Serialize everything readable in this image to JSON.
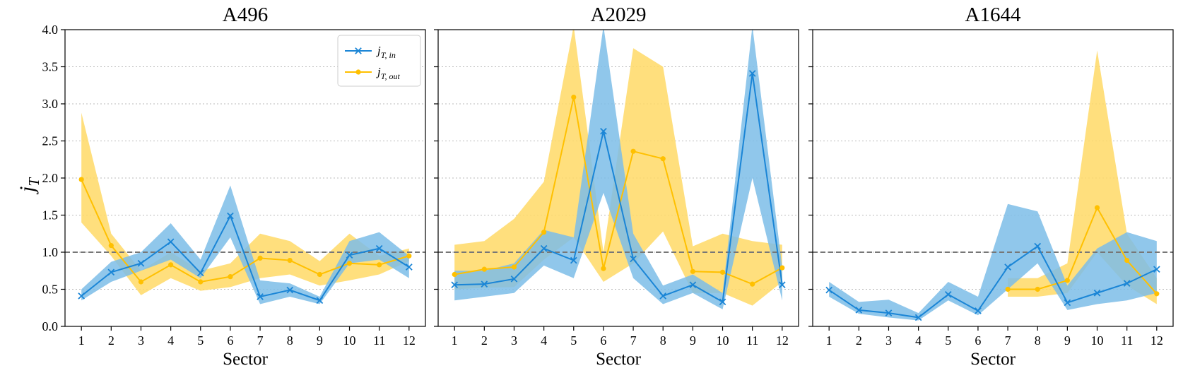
{
  "chart_data": {
    "type": "line",
    "ylabel": "j_T",
    "ylabel_main": "j",
    "ylabel_sub": "T",
    "ylim": [
      0,
      4.0
    ],
    "yticks": [
      "0.0",
      "0.5",
      "1.0",
      "1.5",
      "2.0",
      "2.5",
      "3.0",
      "3.5",
      "4.0"
    ],
    "ytick_values": [
      0,
      0.5,
      1.0,
      1.5,
      2.0,
      2.5,
      3.0,
      3.5,
      4.0
    ],
    "reference_line": 1.0,
    "xlabel": "Sector",
    "x": [
      1,
      2,
      3,
      4,
      5,
      6,
      7,
      8,
      9,
      10,
      11,
      12
    ],
    "xticks": [
      "1",
      "2",
      "3",
      "4",
      "5",
      "6",
      "7",
      "8",
      "9",
      "10",
      "11",
      "12"
    ],
    "legend": {
      "location": "top-right of first panel",
      "entries": [
        {
          "main": "j",
          "sub": "T, in",
          "series": "in"
        },
        {
          "main": "j",
          "sub": "T, out",
          "series": "out"
        }
      ]
    },
    "colors": {
      "in": "#1a85d6",
      "in_band": "#7dbde8",
      "out": "#ffc000",
      "out_band": "#ffd966",
      "reference": "#777777",
      "grid": "#bbbbbb"
    },
    "panels": [
      {
        "title": "A496",
        "in": {
          "values": [
            0.41,
            0.73,
            0.85,
            1.14,
            0.72,
            1.49,
            0.4,
            0.49,
            0.35,
            0.96,
            1.05,
            0.8
          ],
          "lower": [
            0.35,
            0.6,
            0.75,
            0.9,
            0.65,
            1.2,
            0.3,
            0.4,
            0.3,
            0.85,
            0.9,
            0.65
          ],
          "upper": [
            0.5,
            0.87,
            1.0,
            1.39,
            0.9,
            1.9,
            0.62,
            0.58,
            0.4,
            1.15,
            1.27,
            0.95
          ]
        },
        "out": {
          "values": [
            1.98,
            1.09,
            0.6,
            0.83,
            0.6,
            0.67,
            0.92,
            0.89,
            0.7,
            0.85,
            0.83,
            0.95
          ],
          "lower": [
            1.4,
            0.95,
            0.42,
            0.65,
            0.48,
            0.53,
            0.65,
            0.7,
            0.55,
            0.62,
            0.7,
            0.88
          ],
          "upper": [
            2.88,
            1.25,
            0.75,
            1.0,
            0.75,
            0.85,
            1.25,
            1.15,
            0.88,
            1.25,
            0.95,
            1.05
          ]
        }
      },
      {
        "title": "A2029",
        "in": {
          "values": [
            0.56,
            0.57,
            0.64,
            1.05,
            0.89,
            2.63,
            0.91,
            0.41,
            0.56,
            0.33,
            3.41,
            0.56
          ],
          "lower": [
            0.35,
            0.4,
            0.45,
            0.82,
            0.65,
            1.8,
            0.65,
            0.3,
            0.45,
            0.23,
            2.0,
            0.35
          ],
          "upper": [
            0.75,
            0.75,
            0.85,
            1.3,
            1.2,
            4.05,
            1.25,
            0.55,
            0.7,
            0.45,
            4.05,
            0.8
          ]
        },
        "out": {
          "values": [
            0.7,
            0.77,
            0.8,
            1.27,
            3.09,
            0.78,
            2.36,
            2.26,
            0.74,
            0.73,
            0.57,
            0.79
          ],
          "lower": [
            0.5,
            0.52,
            0.53,
            0.9,
            1.2,
            0.6,
            0.85,
            1.28,
            0.45,
            0.45,
            0.28,
            0.6
          ],
          "upper": [
            1.1,
            1.15,
            1.45,
            1.95,
            4.05,
            1.0,
            3.75,
            3.5,
            1.08,
            1.25,
            1.15,
            1.1
          ]
        }
      },
      {
        "title": "A1644",
        "in": {
          "values": [
            0.49,
            0.22,
            0.18,
            0.12,
            0.43,
            0.21,
            0.8,
            1.08,
            0.32,
            0.45,
            0.58,
            0.77
          ],
          "lower": [
            0.4,
            0.17,
            0.12,
            0.08,
            0.35,
            0.15,
            0.5,
            0.85,
            0.22,
            0.3,
            0.35,
            0.45
          ],
          "upper": [
            0.6,
            0.33,
            0.36,
            0.18,
            0.6,
            0.4,
            1.65,
            1.55,
            0.55,
            1.05,
            1.27,
            1.15
          ]
        },
        "out": {
          "values": [
            null,
            null,
            null,
            null,
            null,
            null,
            0.5,
            0.5,
            0.62,
            1.6,
            0.89,
            0.44
          ],
          "lower": [
            null,
            null,
            null,
            null,
            null,
            null,
            0.4,
            0.4,
            0.45,
            1.0,
            0.55,
            0.3
          ],
          "upper": [
            null,
            null,
            null,
            null,
            null,
            null,
            0.65,
            0.65,
            0.85,
            3.72,
            1.25,
            0.65
          ]
        }
      }
    ]
  }
}
